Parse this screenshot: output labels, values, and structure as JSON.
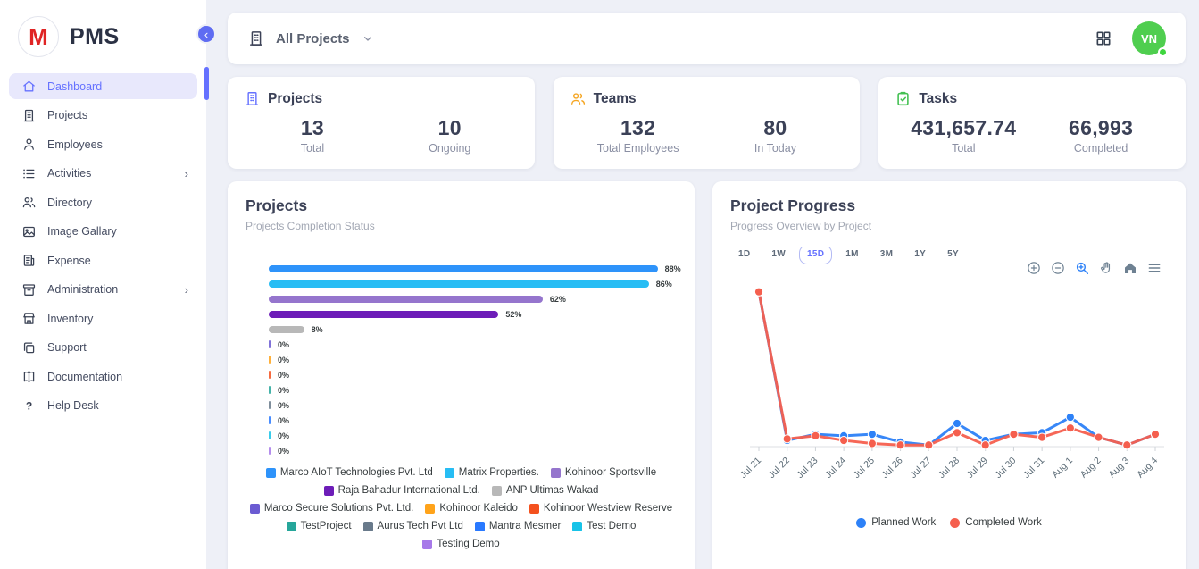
{
  "app": {
    "brand": "PMS",
    "logo_letter": "M"
  },
  "sidebar": {
    "items": [
      {
        "label": "Dashboard",
        "icon": "home-icon",
        "active": true,
        "expandable": false
      },
      {
        "label": "Projects",
        "icon": "building-icon",
        "active": false,
        "expandable": false
      },
      {
        "label": "Employees",
        "icon": "person-icon",
        "active": false,
        "expandable": false
      },
      {
        "label": "Activities",
        "icon": "list-icon",
        "active": false,
        "expandable": true
      },
      {
        "label": "Directory",
        "icon": "people-icon",
        "active": false,
        "expandable": false
      },
      {
        "label": "Image Gallary",
        "icon": "image-icon",
        "active": false,
        "expandable": false
      },
      {
        "label": "Expense",
        "icon": "receipt-icon",
        "active": false,
        "expandable": false
      },
      {
        "label": "Administration",
        "icon": "archive-icon",
        "active": false,
        "expandable": true
      },
      {
        "label": "Inventory",
        "icon": "store-icon",
        "active": false,
        "expandable": false
      },
      {
        "label": "Support",
        "icon": "copy-icon",
        "active": false,
        "expandable": false
      },
      {
        "label": "Documentation",
        "icon": "book-icon",
        "active": false,
        "expandable": false
      },
      {
        "label": "Help Desk",
        "icon": "help-icon",
        "active": false,
        "expandable": false
      }
    ]
  },
  "topbar": {
    "project_selector": "All Projects",
    "avatar_initials": "VN",
    "icons": [
      "grid-icon"
    ]
  },
  "stats": [
    {
      "title": "Projects",
      "icon": "building-icon",
      "icon_color": "#6571ff",
      "metrics": [
        {
          "value": "13",
          "label": "Total"
        },
        {
          "value": "10",
          "label": "Ongoing"
        }
      ]
    },
    {
      "title": "Teams",
      "icon": "people-icon",
      "icon_color": "#f5a623",
      "metrics": [
        {
          "value": "132",
          "label": "Total Employees"
        },
        {
          "value": "80",
          "label": "In Today"
        }
      ]
    },
    {
      "title": "Tasks",
      "icon": "clipboard-check-icon",
      "icon_color": "#43c052",
      "metrics": [
        {
          "value": "431,657.74",
          "label": "Total"
        },
        {
          "value": "66,993",
          "label": "Completed"
        }
      ]
    }
  ],
  "projects_card": {
    "title": "Projects",
    "subtitle": "Projects Completion Status"
  },
  "progress_card": {
    "title": "Project Progress",
    "subtitle": "Progress Overview by Project",
    "ranges": [
      "1D",
      "1W",
      "15D",
      "1M",
      "3M",
      "1Y",
      "5Y"
    ],
    "active_range": "15D",
    "toolbar": [
      "zoom-in-icon",
      "zoom-out-icon",
      "selection-zoom-icon",
      "pan-icon",
      "reset-home-icon",
      "menu-icon"
    ]
  },
  "chart_data": [
    {
      "type": "bar",
      "orientation": "horizontal",
      "title": "Projects Completion Status",
      "categories": [
        "Marco AIoT Technologies Pvt. Ltd",
        "Matrix Properties.",
        "Kohinoor Sportsville",
        "Raja Bahadur International Ltd.",
        "ANP Ultimas Wakad",
        "Marco Secure Solutions Pvt. Ltd.",
        "Kohinoor Kaleido",
        "Kohinoor Westview Reserve",
        "TestProject",
        "Aurus Tech Pvt Ltd",
        "Mantra Mesmer",
        "Test Demo",
        "Testing Demo"
      ],
      "values": [
        88,
        86,
        62,
        52,
        8,
        0,
        0,
        0,
        0,
        0,
        0,
        0,
        0
      ],
      "value_suffix": "%",
      "colors": [
        "#2e93fa",
        "#27bdf4",
        "#9575cd",
        "#6d1db8",
        "#b8b8b8",
        "#6b5bd2",
        "#ffa31a",
        "#f4511e",
        "#26a69a",
        "#697a8b",
        "#2979ff",
        "#18c3e8",
        "#a779e9"
      ],
      "xlim": [
        0,
        100
      ],
      "grid": false,
      "legend_position": "bottom"
    },
    {
      "type": "line",
      "title": "Progress Overview by Project",
      "x": [
        "Jul 21",
        "Jul 22",
        "Jul 23",
        "Jul 24",
        "Jul 25",
        "Jul 26",
        "Jul 27",
        "Jul 28",
        "Jul 29",
        "Jul 30",
        "Jul 31",
        "Aug 1",
        "Aug 2",
        "Aug 3",
        "Aug 4"
      ],
      "series": [
        {
          "name": "Planned Work",
          "color": "#2d81f7",
          "values": [
            100,
            4,
            8,
            7,
            8,
            3,
            1,
            15,
            4,
            8,
            9,
            19,
            6,
            1,
            8
          ]
        },
        {
          "name": "Completed Work",
          "color": "#f55f4e",
          "values": [
            100,
            5,
            7,
            4,
            2,
            1,
            1,
            9,
            1,
            8,
            6,
            12,
            6,
            1,
            8
          ]
        }
      ],
      "ylim": [
        0,
        105
      ],
      "grid": false,
      "legend_position": "bottom"
    }
  ]
}
